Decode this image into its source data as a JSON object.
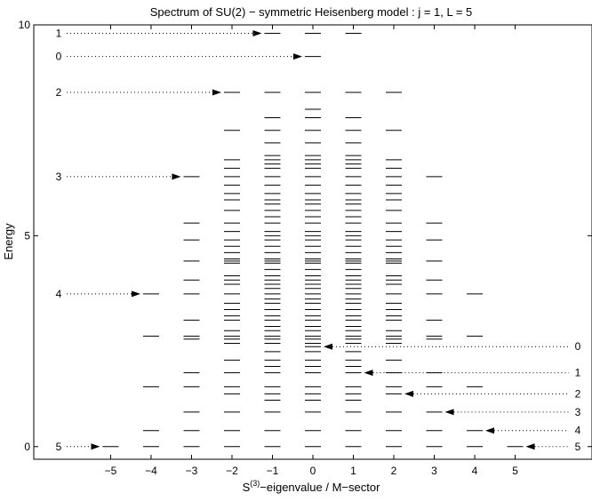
{
  "chart_data": {
    "type": "spectrum-levels",
    "title": "Spectrum of SU(2) − symmetric Heisenberg model : j = 1,  L = 5",
    "xlabel_main": "S",
    "xlabel_sup": "(3)",
    "xlabel_rest": "−eigenvalue / M−sector",
    "ylabel": "Energy",
    "xlim": [
      -6.9,
      6.9
    ],
    "ylim": [
      -0.3,
      10
    ],
    "x_ticks": [
      -5,
      -4,
      -3,
      -2,
      -1,
      0,
      1,
      2,
      3,
      4,
      5
    ],
    "y_ticks": [
      0,
      5,
      10
    ],
    "line_color": "#000000",
    "sectors": [
      {
        "m": -5,
        "energies": [
          0
        ]
      },
      {
        "m": -4,
        "energies": [
          0,
          0.38,
          1.42,
          2.62,
          3.62
        ]
      },
      {
        "m": -3,
        "energies": [
          0,
          0.38,
          0.82,
          1.42,
          1.75,
          2.55,
          2.62,
          3.0,
          3.62,
          3.95,
          4.4,
          4.9,
          5.3,
          6.4
        ]
      },
      {
        "m": -2,
        "energies": [
          0,
          0.38,
          0.82,
          1.25,
          1.42,
          1.75,
          2.05,
          2.45,
          2.55,
          2.62,
          2.75,
          3.0,
          3.1,
          3.25,
          3.4,
          3.62,
          3.85,
          3.95,
          4.05,
          4.35,
          4.4,
          4.45,
          4.6,
          4.75,
          4.9,
          5.1,
          5.3,
          5.6,
          5.85,
          6.0,
          6.2,
          6.4,
          6.6,
          6.8,
          7.5,
          8.4
        ]
      },
      {
        "m": -1,
        "energies": [
          0,
          0.38,
          0.82,
          1.1,
          1.25,
          1.42,
          1.75,
          1.9,
          2.05,
          2.25,
          2.45,
          2.55,
          2.62,
          2.75,
          2.85,
          3.0,
          3.1,
          3.25,
          3.4,
          3.5,
          3.62,
          3.75,
          3.85,
          3.95,
          4.05,
          4.2,
          4.35,
          4.4,
          4.45,
          4.6,
          4.75,
          4.9,
          5.0,
          5.1,
          5.3,
          5.45,
          5.6,
          5.75,
          5.85,
          6.0,
          6.2,
          6.4,
          6.6,
          6.7,
          6.8,
          6.9,
          7.2,
          7.5,
          7.8,
          8.4,
          9.8
        ]
      },
      {
        "m": 0,
        "energies": [
          0,
          0.38,
          0.82,
          1.1,
          1.25,
          1.42,
          1.75,
          1.9,
          2.05,
          2.25,
          2.37,
          2.45,
          2.55,
          2.62,
          2.75,
          2.85,
          3.0,
          3.1,
          3.25,
          3.4,
          3.5,
          3.62,
          3.75,
          3.85,
          3.95,
          4.05,
          4.2,
          4.35,
          4.4,
          4.45,
          4.6,
          4.75,
          4.9,
          5.0,
          5.1,
          5.3,
          5.45,
          5.6,
          5.75,
          5.85,
          6.0,
          6.2,
          6.4,
          6.6,
          6.7,
          6.8,
          6.9,
          7.2,
          7.5,
          7.8,
          8.0,
          8.4,
          9.25,
          9.8
        ]
      },
      {
        "m": 1,
        "energies": [
          0,
          0.38,
          0.82,
          1.1,
          1.25,
          1.42,
          1.75,
          1.9,
          2.05,
          2.25,
          2.45,
          2.55,
          2.62,
          2.75,
          2.85,
          3.0,
          3.1,
          3.25,
          3.4,
          3.5,
          3.62,
          3.75,
          3.85,
          3.95,
          4.05,
          4.2,
          4.35,
          4.4,
          4.45,
          4.6,
          4.75,
          4.9,
          5.0,
          5.1,
          5.3,
          5.45,
          5.6,
          5.75,
          5.85,
          6.0,
          6.2,
          6.4,
          6.6,
          6.7,
          6.8,
          6.9,
          7.2,
          7.5,
          7.8,
          8.4,
          9.8
        ]
      },
      {
        "m": 2,
        "energies": [
          0,
          0.38,
          0.82,
          1.25,
          1.42,
          1.75,
          2.05,
          2.45,
          2.55,
          2.62,
          2.75,
          3.0,
          3.1,
          3.25,
          3.4,
          3.62,
          3.85,
          3.95,
          4.05,
          4.35,
          4.4,
          4.45,
          4.6,
          4.75,
          4.9,
          5.1,
          5.3,
          5.6,
          5.85,
          6.0,
          6.2,
          6.4,
          6.6,
          6.8,
          7.5,
          8.4
        ]
      },
      {
        "m": 3,
        "energies": [
          0,
          0.38,
          0.82,
          1.42,
          1.75,
          2.55,
          2.62,
          3.0,
          3.62,
          3.95,
          4.4,
          4.9,
          5.3,
          6.4
        ]
      },
      {
        "m": 4,
        "energies": [
          0,
          0.38,
          1.42,
          2.62,
          3.62
        ]
      },
      {
        "m": 5,
        "energies": [
          0
        ]
      }
    ],
    "left_annotations": [
      {
        "label": "1",
        "energy": 9.8,
        "target_m": -1
      },
      {
        "label": "0",
        "energy": 9.25,
        "target_m": 0
      },
      {
        "label": "2",
        "energy": 8.4,
        "target_m": -2
      },
      {
        "label": "3",
        "energy": 6.4,
        "target_m": -3
      },
      {
        "label": "4",
        "energy": 3.62,
        "target_m": -4
      },
      {
        "label": "5",
        "energy": 0,
        "target_m": -5
      }
    ],
    "right_annotations": [
      {
        "label": "0",
        "energy": 2.37,
        "target_m": 0
      },
      {
        "label": "1",
        "energy": 1.75,
        "target_m": 1
      },
      {
        "label": "2",
        "energy": 1.25,
        "target_m": 2
      },
      {
        "label": "3",
        "energy": 0.82,
        "target_m": 3
      },
      {
        "label": "4",
        "energy": 0.38,
        "target_m": 4
      },
      {
        "label": "5",
        "energy": 0,
        "target_m": 5
      }
    ]
  }
}
